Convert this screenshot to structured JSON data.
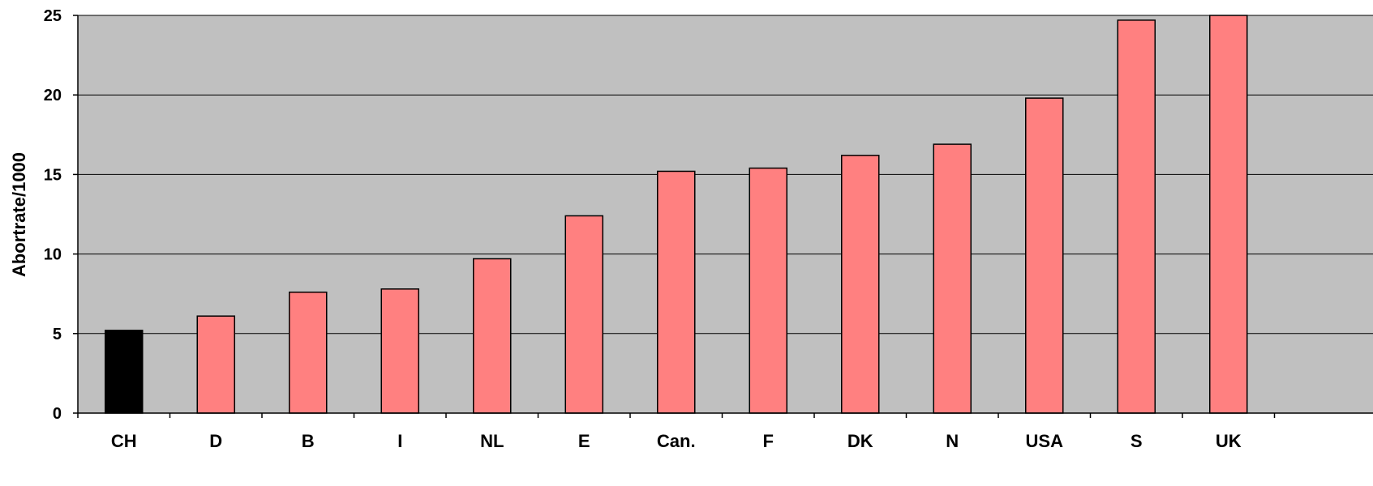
{
  "chart_data": {
    "type": "bar",
    "title": "",
    "xlabel": "",
    "ylabel": "Abortrate/1000",
    "ylim": [
      0,
      25
    ],
    "yticks": [
      "0",
      "5",
      "10",
      "15",
      "20",
      "25"
    ],
    "categories": [
      "CH",
      "D",
      "B",
      "I",
      "NL",
      "E",
      "Can.",
      "F",
      "DK",
      "N",
      "USA",
      "S",
      "UK"
    ],
    "values": [
      5.2,
      6.1,
      7.6,
      7.8,
      9.7,
      12.4,
      15.2,
      15.4,
      16.2,
      16.9,
      19.8,
      24.7,
      25.0
    ],
    "bar_colors": [
      "#000000",
      "#ff8080",
      "#ff8080",
      "#ff8080",
      "#ff8080",
      "#ff8080",
      "#ff8080",
      "#ff8080",
      "#ff8080",
      "#ff8080",
      "#ff8080",
      "#ff8080",
      "#ff8080"
    ],
    "plot_background": "#c0c0c0",
    "grid": true,
    "legend": "none"
  }
}
